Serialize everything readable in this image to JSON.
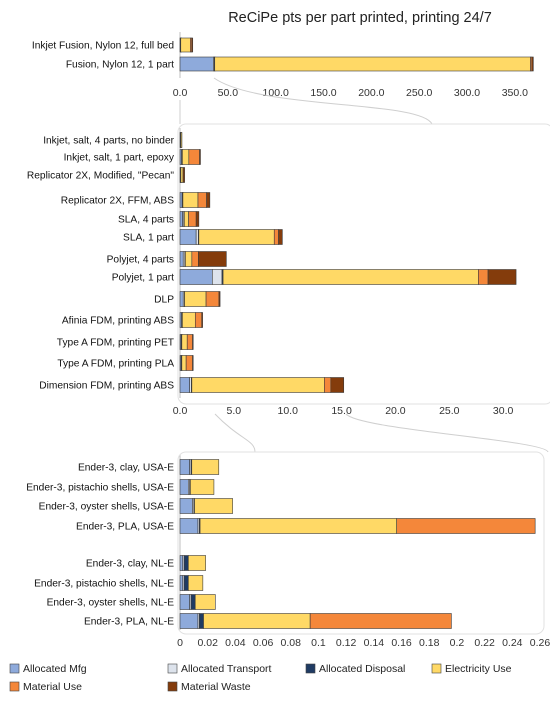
{
  "title": "ReCiPe pts per part printed, printing 24/7",
  "colors": {
    "Allocated Mfg": "#8EAADB",
    "Allocated Transport": "#DDE3EC",
    "Allocated Disposal": "#1F3B63",
    "Electricity Use": "#FFD966",
    "Material Use": "#F4873A",
    "Material Waste": "#843C0C"
  },
  "legend": {
    "position": "bottom",
    "entries": [
      "Allocated Mfg",
      "Allocated Transport",
      "Allocated Disposal",
      "Electricity Use",
      "Material Use",
      "Material Waste"
    ]
  },
  "chart_data": [
    {
      "type": "bar",
      "orientation": "horizontal",
      "stacked": true,
      "title": "ReCiPe pts per part printed, printing 24/7",
      "xlim": [
        0,
        370
      ],
      "ticks": [
        "0.0",
        "50.0",
        "100.0",
        "150.0",
        "200.0",
        "250.0",
        "300.0",
        "350.0"
      ],
      "tick_values": [
        0,
        50,
        100,
        150,
        200,
        250,
        300,
        350
      ],
      "gridlines": false,
      "categories": [
        "Inkjet Fusion, Nylon 12, full bed",
        "Fusion, Nylon 12, 1 part"
      ],
      "series": [
        {
          "name": "Allocated Mfg",
          "values": [
            0.5,
            35
          ]
        },
        {
          "name": "Allocated Transport",
          "values": [
            0.2,
            1
          ]
        },
        {
          "name": "Allocated Disposal",
          "values": [
            0.1,
            0.3
          ]
        },
        {
          "name": "Electricity Use",
          "values": [
            10,
            330
          ]
        },
        {
          "name": "Material Use",
          "values": [
            1.5,
            1.5
          ]
        },
        {
          "name": "Material Waste",
          "values": [
            1,
            1.5
          ]
        }
      ]
    },
    {
      "type": "bar",
      "orientation": "horizontal",
      "stacked": true,
      "xlim": [
        0,
        35
      ],
      "ticks": [
        "0.0",
        "5.0",
        "10.0",
        "15.0",
        "20.0",
        "25.0",
        "30.0"
      ],
      "tick_values": [
        0,
        5,
        10,
        15,
        20,
        25,
        30
      ],
      "gridlines": false,
      "categories": [
        "Inkjet, salt, 4 parts, no binder",
        "Inkjet, salt, 1 part, epoxy",
        "Replicator 2X, Modified, \"Pecan\"",
        "Replicator 2X, FFM, ABS",
        "SLA, 4 parts",
        "SLA, 1 part",
        "Polyjet, 4 parts",
        "Polyjet, 1 part",
        "DLP",
        "Afinia FDM, printing ABS",
        "Type A FDM, printing PET",
        "Type A FDM, printing PLA",
        "Dimension FDM, printing ABS"
      ],
      "series": [
        {
          "name": "Allocated Mfg",
          "values": [
            0.05,
            0.15,
            0.05,
            0.2,
            0.25,
            1.5,
            0.3,
            3.0,
            0.3,
            0.15,
            0.1,
            0.1,
            0.9
          ]
        },
        {
          "name": "Allocated Transport",
          "values": [
            0.02,
            0.05,
            0.02,
            0.05,
            0.1,
            0.2,
            0.15,
            0.9,
            0.1,
            0.05,
            0.05,
            0.05,
            0.15
          ]
        },
        {
          "name": "Allocated Disposal",
          "values": [
            0.01,
            0.02,
            0.01,
            0.02,
            0.05,
            0.05,
            0.05,
            0.1,
            0.02,
            0.02,
            0.02,
            0.02,
            0.05
          ]
        },
        {
          "name": "Electricity Use",
          "values": [
            0.1,
            0.6,
            0.2,
            1.4,
            0.4,
            7.0,
            0.6,
            23.7,
            2.0,
            1.2,
            0.5,
            0.4,
            12.3
          ]
        },
        {
          "name": "Material Use",
          "values": [
            0,
            1.0,
            0,
            0.8,
            0.7,
            0.4,
            0.6,
            0.9,
            1.2,
            0.6,
            0.5,
            0.6,
            0.6
          ]
        },
        {
          "name": "Material Waste",
          "values": [
            0,
            0.08,
            0.15,
            0.3,
            0.25,
            0.35,
            2.6,
            2.6,
            0.1,
            0.08,
            0.05,
            0.05,
            1.2
          ]
        }
      ]
    },
    {
      "type": "bar",
      "orientation": "horizontal",
      "stacked": true,
      "xlim": [
        0,
        0.26
      ],
      "ticks": [
        "0",
        "0.02",
        "0.04",
        "0.06",
        "0.08",
        "0.1",
        "0.12",
        "0.14",
        "0.16",
        "0.18",
        "0.2",
        "0.22",
        "0.24",
        "0.26"
      ],
      "tick_values": [
        0,
        0.02,
        0.04,
        0.06,
        0.08,
        0.1,
        0.12,
        0.14,
        0.16,
        0.18,
        0.2,
        0.22,
        0.24,
        0.26
      ],
      "gridlines": false,
      "groups": [
        {
          "categories": [
            "Ender-3, clay, USA-E",
            "Ender-3, pistachio shells, USA-E",
            "Ender-3, oyster shells, USA-E",
            "Ender-3, PLA, USA-E"
          ]
        },
        {
          "categories": [
            "Ender-3, clay, NL-E",
            "Ender-3, pistachio shells, NL-E",
            "Ender-3, oyster shells, NL-E",
            "Ender-3, PLA, NL-E"
          ]
        }
      ],
      "categories": [
        "Ender-3, clay, USA-E",
        "Ender-3, pistachio shells, USA-E",
        "Ender-3, oyster shells, USA-E",
        "Ender-3, PLA, USA-E",
        "Ender-3, clay, NL-E",
        "Ender-3, pistachio shells, NL-E",
        "Ender-3, oyster shells, NL-E",
        "Ender-3, PLA, NL-E"
      ],
      "series": [
        {
          "name": "Allocated Mfg",
          "values": [
            0.007,
            0.006,
            0.009,
            0.013,
            0.002,
            0.002,
            0.007,
            0.013
          ]
        },
        {
          "name": "Allocated Transport",
          "values": [
            0.001,
            0.001,
            0.001,
            0.001,
            0.001,
            0.001,
            0.001,
            0.001
          ]
        },
        {
          "name": "Allocated Disposal",
          "values": [
            0.0005,
            0.0005,
            0.0005,
            0.0005,
            0.003,
            0.003,
            0.003,
            0.003
          ]
        },
        {
          "name": "Electricity Use",
          "values": [
            0.0195,
            0.017,
            0.0275,
            0.142,
            0.0125,
            0.0105,
            0.0145,
            0.077
          ]
        },
        {
          "name": "Material Use",
          "values": [
            0,
            0,
            0,
            0.1,
            0,
            0,
            0,
            0.102
          ]
        },
        {
          "name": "Material Waste",
          "values": [
            0,
            0,
            0,
            0,
            0,
            0,
            0,
            0
          ]
        }
      ]
    }
  ]
}
